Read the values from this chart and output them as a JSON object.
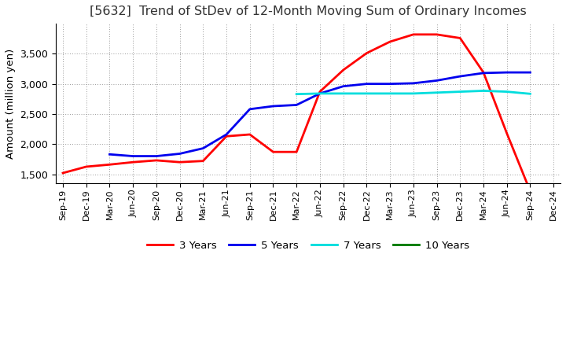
{
  "title": "[5632]  Trend of StDev of 12-Month Moving Sum of Ordinary Incomes",
  "ylabel": "Amount (million yen)",
  "x_labels": [
    "Sep-19",
    "Dec-19",
    "Mar-20",
    "Jun-20",
    "Sep-20",
    "Dec-20",
    "Mar-21",
    "Jun-21",
    "Sep-21",
    "Dec-21",
    "Mar-22",
    "Jun-22",
    "Sep-22",
    "Dec-22",
    "Mar-23",
    "Jun-23",
    "Sep-23",
    "Dec-23",
    "Mar-24",
    "Jun-24",
    "Sep-24",
    "Dec-24"
  ],
  "series": {
    "3 Years": {
      "color": "#FF0000",
      "linewidth": 2.0,
      "values": [
        1520,
        1625,
        1660,
        1700,
        1730,
        1700,
        1720,
        2130,
        2160,
        1870,
        1870,
        2870,
        3230,
        3510,
        3700,
        3820,
        3820,
        3760,
        3190,
        2180,
        1220,
        null
      ]
    },
    "5 Years": {
      "color": "#0000EE",
      "linewidth": 2.0,
      "values": [
        null,
        null,
        1830,
        1800,
        1800,
        1840,
        1930,
        2160,
        2580,
        2630,
        2650,
        2840,
        2960,
        3000,
        3000,
        3010,
        3055,
        3125,
        3180,
        3190,
        3190,
        null
      ]
    },
    "7 Years": {
      "color": "#00DDDD",
      "linewidth": 2.0,
      "values": [
        null,
        null,
        null,
        null,
        null,
        null,
        null,
        null,
        null,
        null,
        2830,
        2840,
        2840,
        2840,
        2840,
        2840,
        2855,
        2870,
        2885,
        2870,
        2835,
        null
      ]
    },
    "10 Years": {
      "color": "#007700",
      "linewidth": 2.0,
      "values": [
        null,
        null,
        null,
        null,
        null,
        null,
        null,
        null,
        null,
        null,
        null,
        null,
        null,
        null,
        null,
        null,
        null,
        null,
        null,
        null,
        null,
        null
      ]
    }
  },
  "ylim": [
    1350,
    4000
  ],
  "yticks": [
    1500,
    2000,
    2500,
    3000,
    3500
  ],
  "background_color": "#FFFFFF",
  "grid_color": "#999999",
  "title_fontsize": 11.5,
  "title_fontweight": "normal",
  "axis_label_fontsize": 9.5,
  "tick_fontsize": 9,
  "xtick_fontsize": 8
}
